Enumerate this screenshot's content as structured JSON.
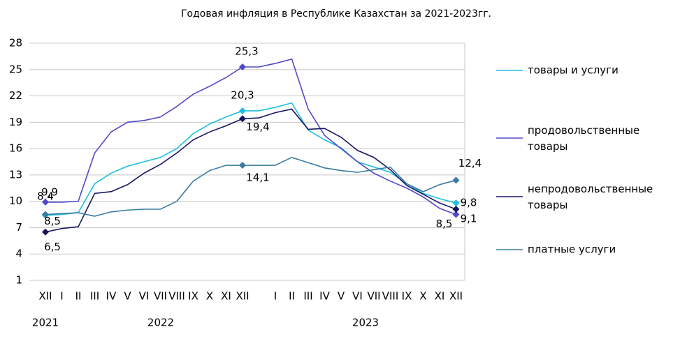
{
  "chart_data": {
    "type": "line",
    "title": "Годовая инфляция в Республике Казахстан за 2021-2023гг.",
    "categories": [
      "XII",
      "I",
      "II",
      "III",
      "IV",
      "V",
      "VI",
      "VII",
      "VIII",
      "IX",
      "X",
      "XI",
      "XII",
      null,
      "I",
      "II",
      "III",
      "IV",
      "V",
      "VI",
      "VII",
      "VIII",
      "IX",
      "X",
      "XI",
      "XII"
    ],
    "year_labels": [
      "2021",
      "2022",
      "2023"
    ],
    "ylim": [
      1,
      28
    ],
    "yticks": [
      1,
      4,
      7,
      10,
      13,
      16,
      19,
      22,
      25,
      28
    ],
    "grid": true,
    "legend": "right",
    "series": [
      {
        "name": "товары и услуги",
        "color": "#1ebfe0",
        "values": [
          8.4,
          8.5,
          8.7,
          12.0,
          13.2,
          14.0,
          14.5,
          15.0,
          16.0,
          17.7,
          18.8,
          19.6,
          20.3,
          20.3,
          20.7,
          21.2,
          18.1,
          17.0,
          16.1,
          14.5,
          13.9,
          13.3,
          12.0,
          10.9,
          10.3,
          9.8
        ],
        "value_labels": [
          "8,4",
          null,
          null,
          null,
          null,
          null,
          null,
          null,
          null,
          null,
          null,
          null,
          "20,3",
          null,
          null,
          null,
          null,
          null,
          null,
          null,
          null,
          null,
          null,
          null,
          null,
          "9,8"
        ]
      },
      {
        "name": "продовольственные товары",
        "color": "#5148c8",
        "values": [
          9.9,
          9.9,
          10.0,
          15.5,
          17.9,
          19.0,
          19.2,
          19.6,
          20.8,
          22.2,
          23.1,
          24.1,
          25.3,
          25.3,
          25.7,
          26.2,
          20.5,
          17.5,
          16.0,
          14.5,
          13.2,
          12.3,
          11.5,
          10.5,
          9.2,
          8.5
        ],
        "value_labels": [
          "9,9",
          null,
          null,
          null,
          null,
          null,
          null,
          null,
          null,
          null,
          null,
          null,
          "25,3",
          null,
          null,
          null,
          null,
          null,
          null,
          null,
          null,
          null,
          null,
          null,
          null,
          "8,5"
        ]
      },
      {
        "name": "непродовольственные товары",
        "color": "#161660",
        "values": [
          6.5,
          6.9,
          7.1,
          10.9,
          11.1,
          11.9,
          13.2,
          14.2,
          15.5,
          17.0,
          17.9,
          18.6,
          19.4,
          19.5,
          20.1,
          20.5,
          18.2,
          18.3,
          17.3,
          15.8,
          15.0,
          13.6,
          11.8,
          10.8,
          9.8,
          9.1
        ],
        "value_labels": [
          "6,5",
          null,
          null,
          null,
          null,
          null,
          null,
          null,
          null,
          null,
          null,
          null,
          "19,4",
          null,
          null,
          null,
          null,
          null,
          null,
          null,
          null,
          null,
          null,
          null,
          null,
          "9,1"
        ]
      },
      {
        "name": "платные услуги",
        "color": "#3a7ca0",
        "values": [
          8.5,
          8.6,
          8.7,
          8.3,
          8.8,
          9.0,
          9.1,
          9.1,
          10.0,
          12.3,
          13.5,
          14.1,
          14.1,
          14.1,
          14.1,
          15.0,
          14.4,
          13.8,
          13.5,
          13.3,
          13.6,
          13.9,
          12.0,
          11.1,
          11.9,
          12.4
        ],
        "value_labels": [
          "8,5",
          null,
          null,
          null,
          null,
          null,
          null,
          null,
          null,
          null,
          null,
          null,
          "14,1",
          null,
          null,
          null,
          null,
          null,
          null,
          null,
          null,
          null,
          null,
          null,
          null,
          "12,4"
        ]
      }
    ]
  }
}
